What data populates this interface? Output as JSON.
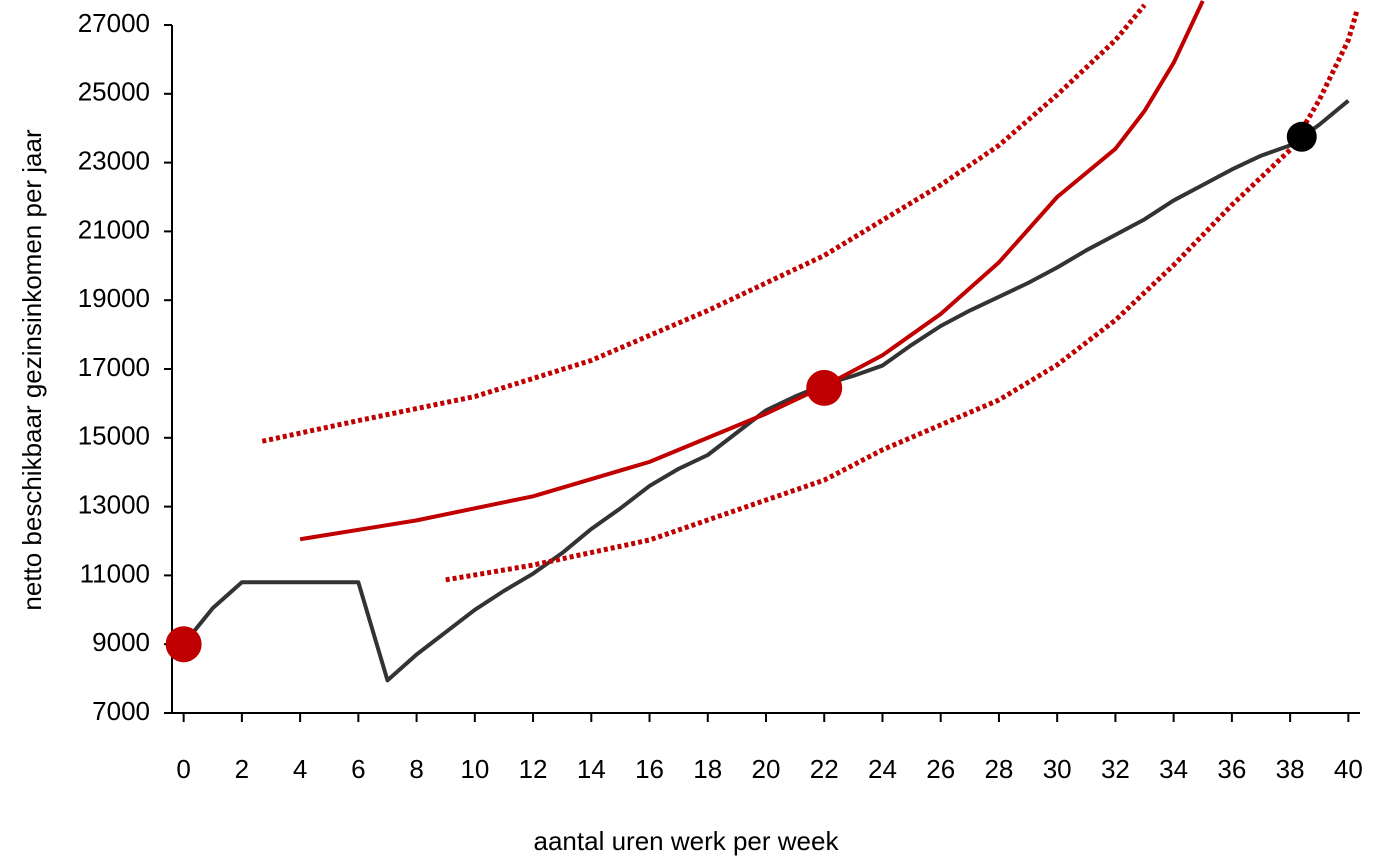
{
  "chart_data": {
    "type": "line",
    "xlabel": "aantal uren werk per week",
    "ylabel": "netto beschikbaar gezinsinkomen per jaar",
    "xlim": [
      -0.4,
      40.4
    ],
    "xticks": [
      0,
      2,
      4,
      6,
      8,
      10,
      12,
      14,
      16,
      18,
      20,
      22,
      24,
      26,
      28,
      30,
      32,
      34,
      36,
      38,
      40
    ],
    "ylim": [
      7000,
      27000
    ],
    "yticks": [
      7000,
      9000,
      11000,
      13000,
      15000,
      17000,
      19000,
      21000,
      23000,
      25000,
      27000
    ],
    "series": [
      {
        "color": "#333333",
        "style": "solid",
        "x": [
          0,
          1,
          2,
          3,
          4,
          5,
          6,
          7,
          8,
          9,
          10,
          11,
          12,
          13,
          14,
          15,
          16,
          17,
          18,
          19,
          20,
          21,
          22,
          23,
          24,
          25,
          26,
          27,
          28,
          29,
          30,
          31,
          32,
          33,
          34,
          35,
          36,
          37,
          38,
          39,
          40
        ],
        "values": [
          9000,
          10050,
          10800,
          10800,
          10800,
          10800,
          10800,
          7950,
          8700,
          9350,
          10000,
          10550,
          11050,
          11650,
          12350,
          12950,
          13600,
          14100,
          14500,
          15150,
          15800,
          16200,
          16550,
          16800,
          17100,
          17700,
          18250,
          18700,
          19100,
          19500,
          19950,
          20450,
          20900,
          21350,
          21900,
          22350,
          22800,
          23200,
          23500,
          24100,
          24800
        ]
      },
      {
        "color": "#c00000",
        "style": "solid",
        "x": [
          4,
          8,
          12,
          16,
          20,
          22,
          24,
          26,
          28,
          30,
          32,
          33,
          34,
          35
        ],
        "values": [
          12050,
          12600,
          13300,
          14300,
          15700,
          16500,
          17400,
          18600,
          20100,
          22000,
          23400,
          24500,
          25900,
          27700
        ]
      },
      {
        "color": "#c00000",
        "style": "dotted",
        "x": [
          2.7,
          6,
          10,
          14,
          18,
          22,
          26,
          28,
          30,
          32,
          33
        ],
        "values": [
          14900,
          15500,
          16200,
          17250,
          18700,
          20300,
          22350,
          23500,
          24970,
          26560,
          27580
        ]
      },
      {
        "color": "#c00000",
        "style": "dotted",
        "x": [
          9,
          12,
          16,
          20,
          22,
          24,
          28,
          30,
          32,
          34,
          36,
          38,
          39,
          40,
          40.3
        ],
        "values": [
          10870,
          11300,
          12030,
          13190,
          13770,
          14650,
          16100,
          17120,
          18420,
          20020,
          21770,
          23370,
          24820,
          26560,
          27430
        ]
      }
    ],
    "markers": [
      {
        "x": 0,
        "y": 9000,
        "color": "#c00000"
      },
      {
        "x": 22,
        "y": 16450,
        "color": "#c00000"
      },
      {
        "x": 38.4,
        "y": 23750,
        "color": "#000000"
      }
    ]
  }
}
